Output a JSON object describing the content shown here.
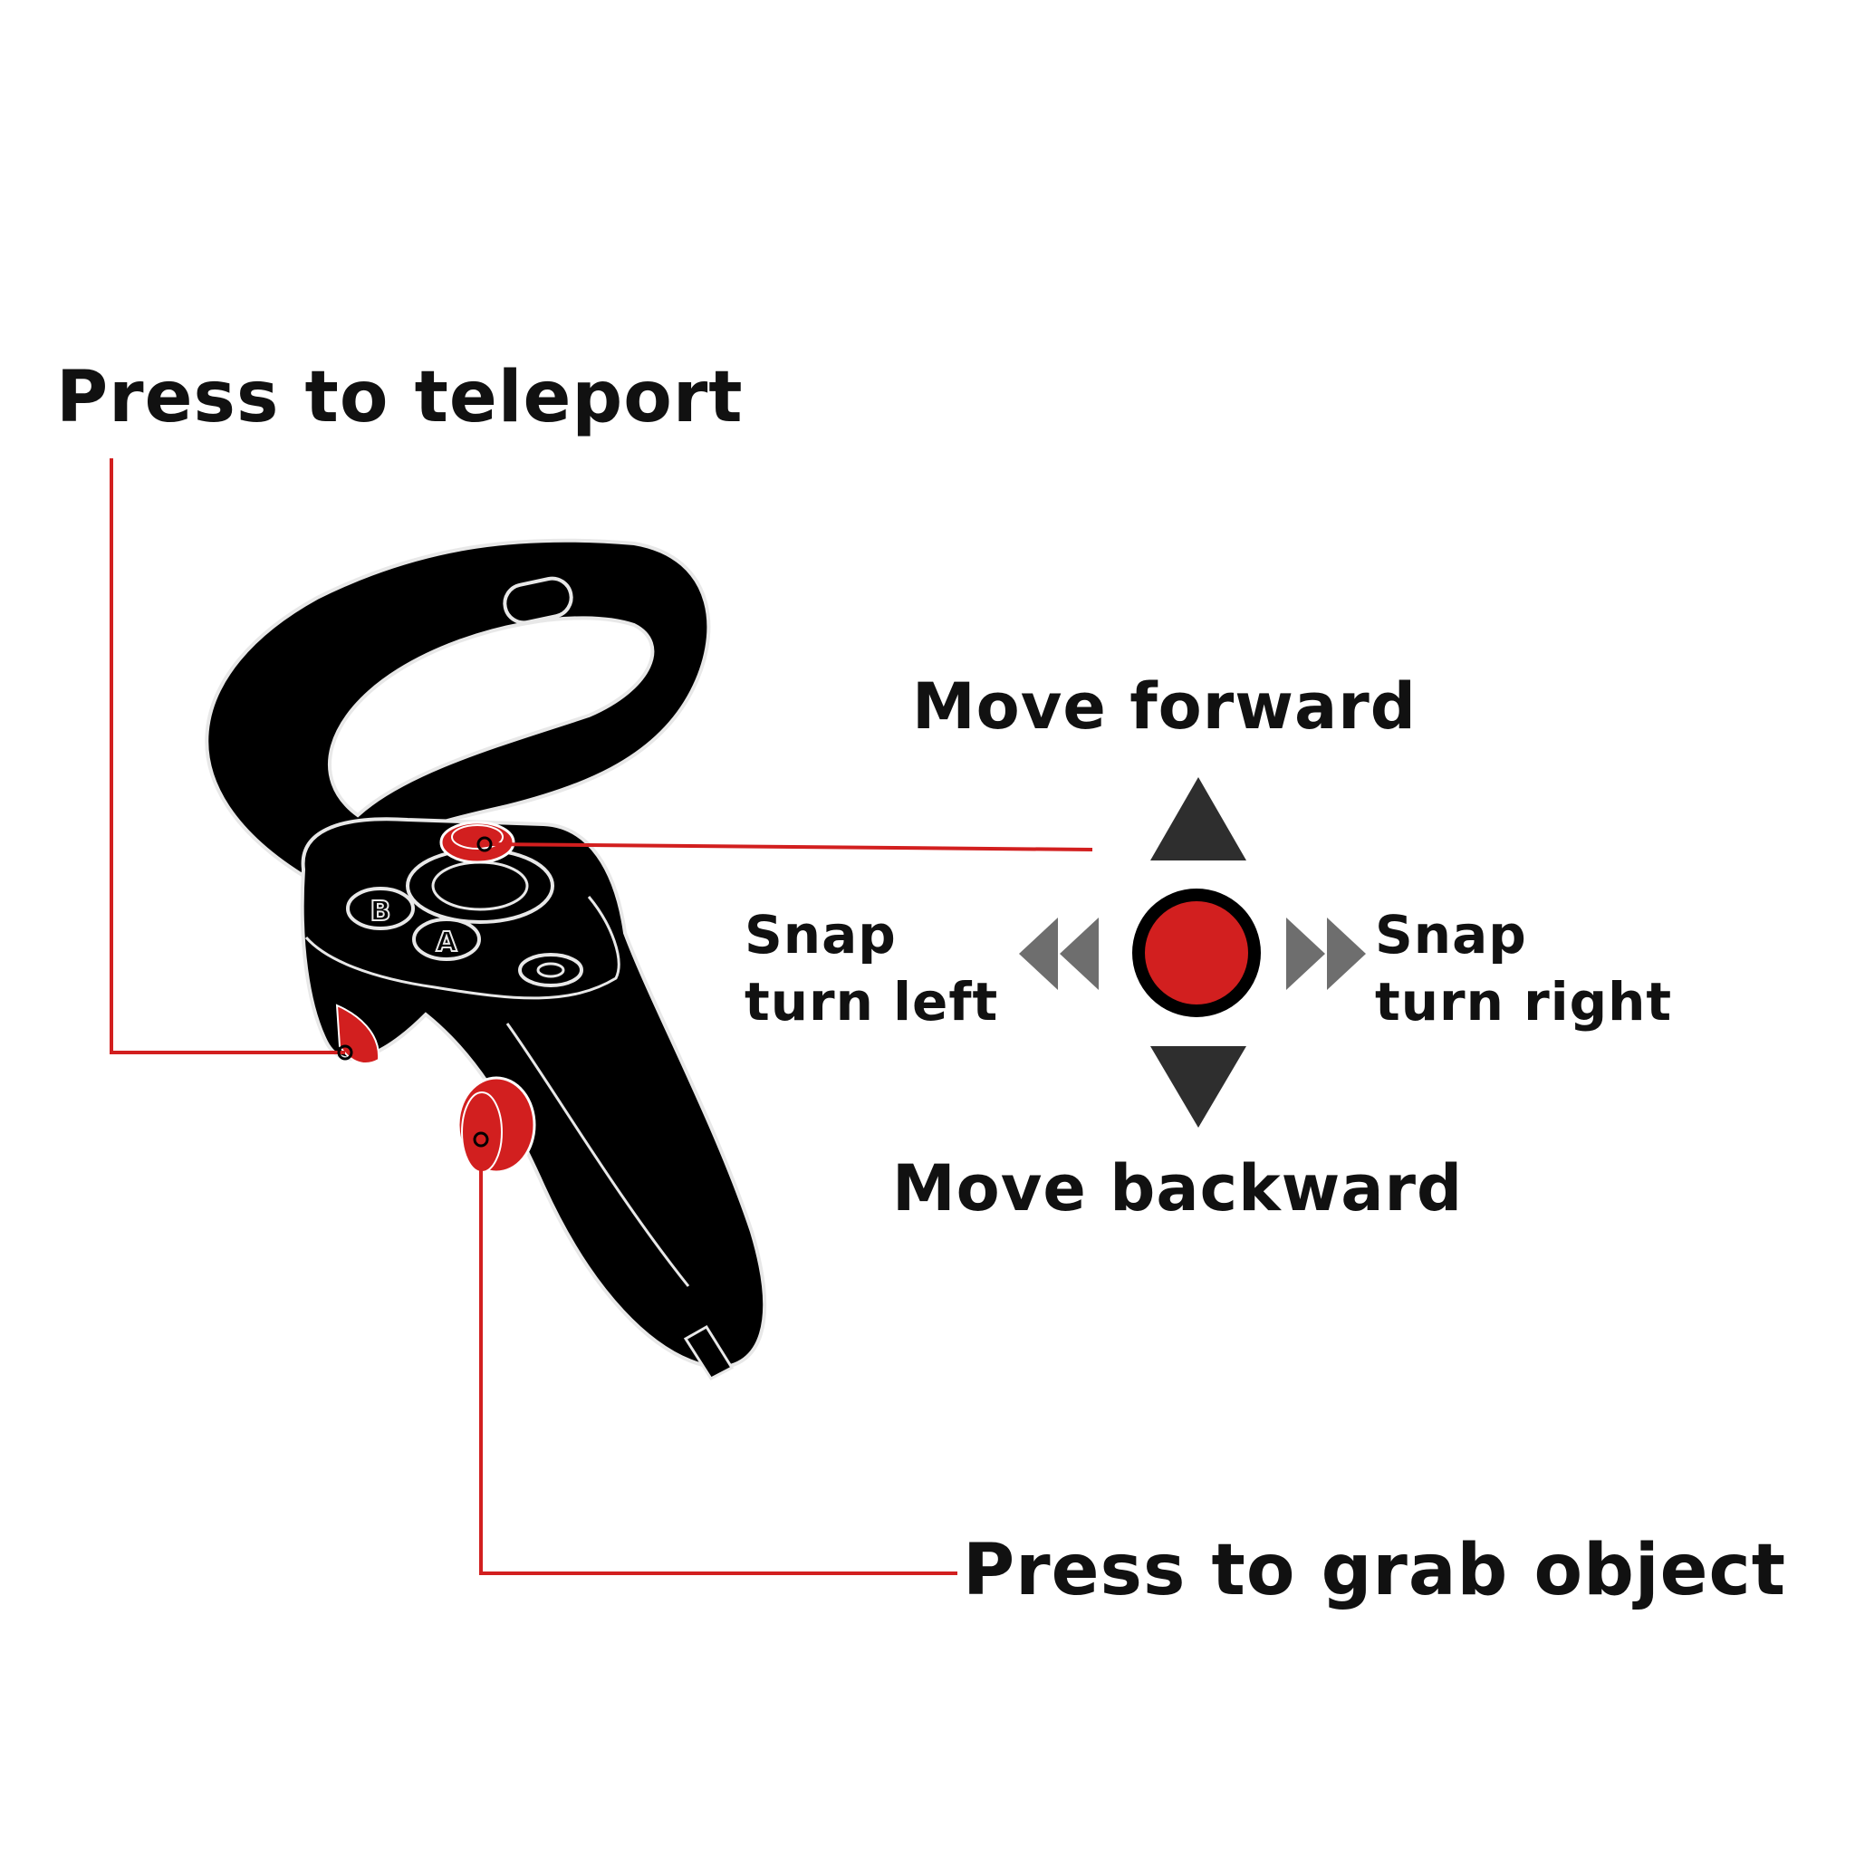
{
  "labels": {
    "teleport": "Press to teleport",
    "move_forward": "Move forward",
    "snap_left_line1": "Snap",
    "snap_left_line2": "turn left",
    "snap_right_line1": "Snap",
    "snap_right_line2": "turn right",
    "move_backward": "Move backward",
    "grab": "Press to grab object"
  },
  "controller": {
    "buttons": {
      "b": "B",
      "a": "A"
    }
  },
  "colors": {
    "accent": "#d21f1f",
    "body": "#000000",
    "outline": "#e8e8e8",
    "arrow_dark": "#2e2e2e",
    "arrow_gray": "#6e6e6e",
    "text": "#111111"
  },
  "icons": {
    "controller": "vr-controller-icon",
    "thumbstick": "thumbstick-icon",
    "up": "triangle-up-icon",
    "down": "triangle-down-icon",
    "left": "double-chevron-left-icon",
    "right": "double-chevron-right-icon"
  }
}
